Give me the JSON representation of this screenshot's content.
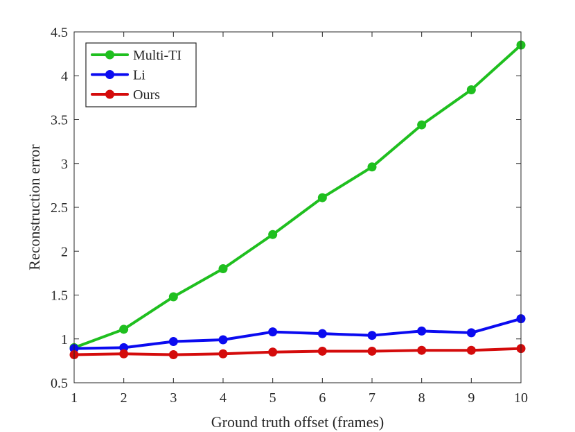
{
  "chart_data": {
    "type": "line",
    "title": "",
    "xlabel": "Ground truth offset (frames)",
    "ylabel": "Reconstruction error",
    "x": [
      1,
      2,
      3,
      4,
      5,
      6,
      7,
      8,
      9,
      10
    ],
    "xlim": [
      1,
      10
    ],
    "ylim": [
      0.5,
      4.5
    ],
    "xticks": [
      "1",
      "2",
      "3",
      "4",
      "5",
      "6",
      "7",
      "8",
      "9",
      "10"
    ],
    "yticks": [
      "0.5",
      "1",
      "1.5",
      "2",
      "2.5",
      "3",
      "3.5",
      "4",
      "4.5"
    ],
    "grid": false,
    "legend_position": "top-left",
    "series": [
      {
        "name": "Multi-TI",
        "color": "#1fbf1f",
        "values": [
          0.9,
          1.11,
          1.48,
          1.8,
          2.19,
          2.61,
          2.96,
          3.44,
          3.84,
          4.35
        ]
      },
      {
        "name": "Li",
        "color": "#0b0bf0",
        "values": [
          0.89,
          0.9,
          0.97,
          0.99,
          1.08,
          1.06,
          1.04,
          1.09,
          1.07,
          1.23
        ]
      },
      {
        "name": "Ours",
        "color": "#d40b0b",
        "values": [
          0.82,
          0.83,
          0.82,
          0.83,
          0.85,
          0.86,
          0.86,
          0.87,
          0.87,
          0.89
        ]
      }
    ]
  }
}
